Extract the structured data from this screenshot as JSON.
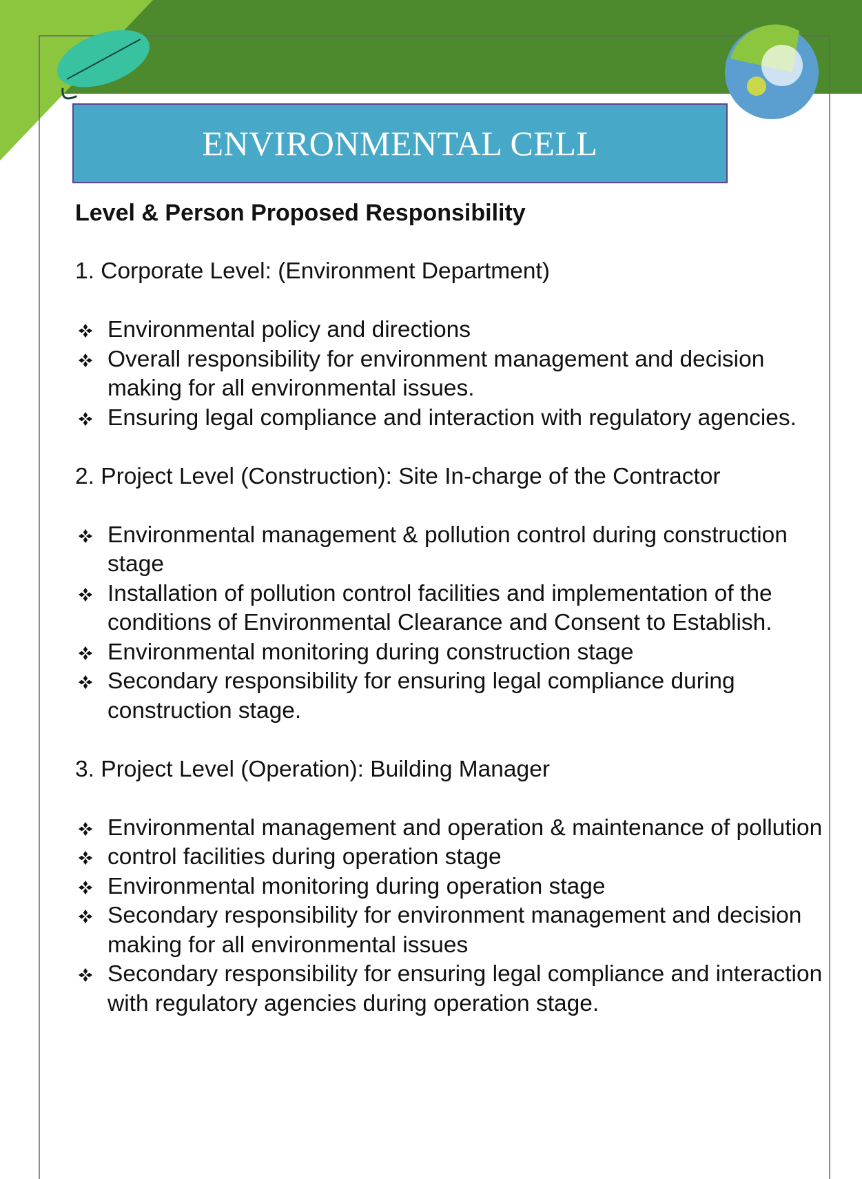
{
  "header": {
    "title": "ENVIRONMENTAL CELL"
  },
  "subtitle": "Level & Person Proposed Responsibility",
  "sections": [
    {
      "heading": "1.  Corporate Level: (Environment Department)",
      "items": [
        "Environmental policy and directions",
        "Overall responsibility for environment management and decision making for all environmental issues.",
        "Ensuring legal compliance and interaction with regulatory agencies."
      ]
    },
    {
      "heading": "2. Project Level (Construction): Site In-charge of the Contractor",
      "items": [
        "Environmental management & pollution control during construction stage",
        "Installation of pollution control facilities and implementation of the conditions of Environmental Clearance and Consent to Establish.",
        "Environmental monitoring during construction stage",
        "Secondary responsibility for ensuring legal compliance during construction stage."
      ]
    },
    {
      "heading": "3. Project Level (Operation): Building Manager",
      "items": [
        "Environmental management and operation & maintenance of pollution",
        "control facilities during operation stage",
        "Environmental monitoring during operation stage",
        "Secondary responsibility for environment management and decision making for all environmental issues",
        "Secondary responsibility for ensuring legal compliance and interaction with regulatory agencies during operation stage."
      ]
    }
  ]
}
